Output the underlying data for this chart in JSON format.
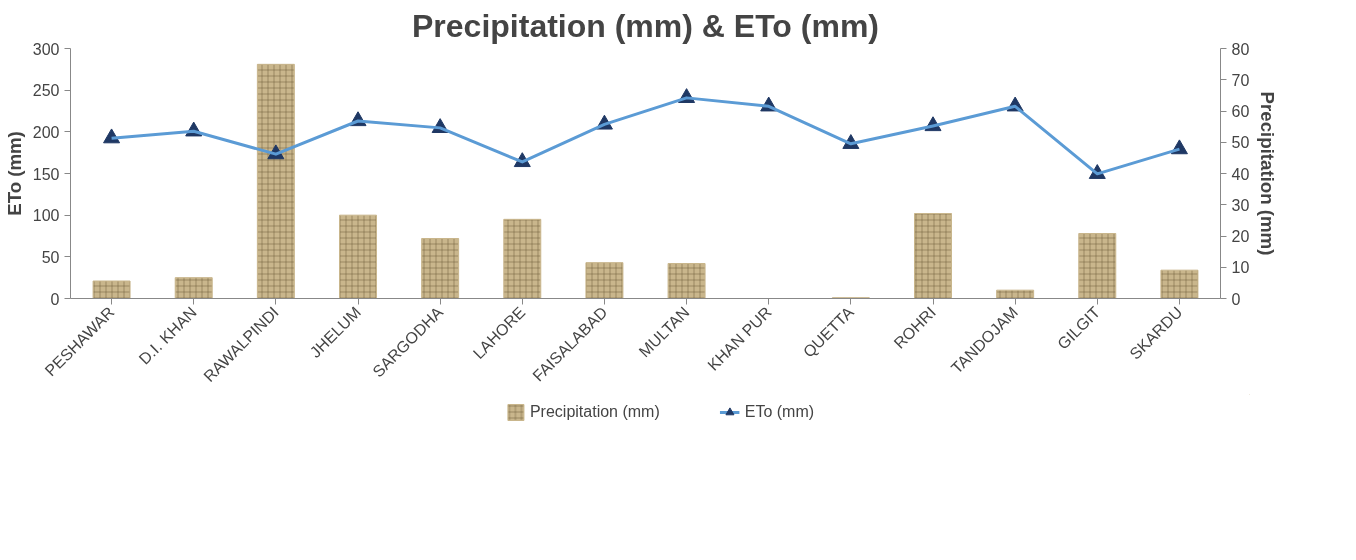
{
  "chart_data": {
    "type": "bar",
    "title": "Precipitation (mm) & ETo (mm)",
    "ylabel": "ETo (mm)",
    "y2label": "Precipitation (mm)",
    "categories": [
      "PESHAWAR",
      "D.I. KHAN",
      "RAWALPINDI",
      "JHELUM",
      "SARGODHA",
      "LAHORE",
      "FAISALABAD",
      "MULTAN",
      "KHAN PUR",
      "QUETTA",
      "ROHRI",
      "TANDOJAM",
      "GILGIT",
      "SKARDU"
    ],
    "series": [
      {
        "name": "Precipitation (mm)",
        "color": "#c9b68c",
        "values": [
          21,
          25,
          281,
          100,
          72,
          95,
          43,
          42,
          0,
          1,
          102,
          10,
          78,
          34
        ]
      },
      {
        "name": "ETo (mm)",
        "type": "line",
        "axis": "y2",
        "color": "#5b9bd5",
        "marker": "triangle",
        "values": [
          51.3,
          53.5,
          46.2,
          56.8,
          54.6,
          43.7,
          55.7,
          64.2,
          61.5,
          49.5,
          55.2,
          61.5,
          39.9,
          47.8
        ]
      }
    ],
    "ylim": [
      0,
      300
    ],
    "yticks": [
      0,
      50,
      100,
      150,
      200,
      250,
      300
    ],
    "y2lim": [
      0,
      80
    ],
    "y2ticks": [
      0,
      10,
      20,
      30,
      40,
      50,
      60,
      70,
      80
    ],
    "grid": false,
    "legend": "bottom"
  }
}
